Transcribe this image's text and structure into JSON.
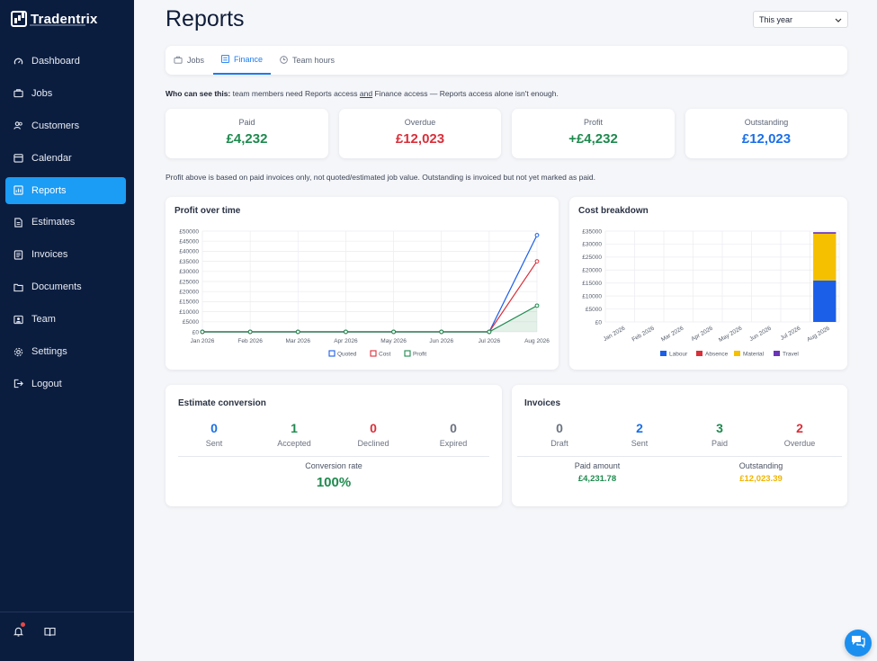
{
  "app": {
    "name": "Tradentrix"
  },
  "sidebar": {
    "items": [
      {
        "label": "Dashboard",
        "icon": "gauge-icon"
      },
      {
        "label": "Jobs",
        "icon": "briefcase-icon"
      },
      {
        "label": "Customers",
        "icon": "users-icon"
      },
      {
        "label": "Calendar",
        "icon": "calendar-icon"
      },
      {
        "label": "Reports",
        "icon": "report-icon",
        "active": true
      },
      {
        "label": "Estimates",
        "icon": "document-icon"
      },
      {
        "label": "Invoices",
        "icon": "invoice-icon"
      },
      {
        "label": "Documents",
        "icon": "folder-icon"
      },
      {
        "label": "Team",
        "icon": "team-icon"
      },
      {
        "label": "Settings",
        "icon": "gear-icon"
      },
      {
        "label": "Logout",
        "icon": "logout-icon"
      }
    ]
  },
  "header": {
    "title": "Reports",
    "period": "This year"
  },
  "tabs": [
    {
      "label": "Jobs",
      "icon": "briefcase-icon"
    },
    {
      "label": "Finance",
      "icon": "list-icon",
      "active": true
    },
    {
      "label": "Team hours",
      "icon": "clock-icon"
    }
  ],
  "notice": {
    "lead": "Who can see this:",
    "part1": "team members need Reports access",
    "and": "and",
    "part2": "Finance access — Reports access alone isn't enough."
  },
  "kpis": [
    {
      "label": "Paid",
      "value": "£4,232",
      "color": "#1e8a4e"
    },
    {
      "label": "Overdue",
      "value": "£12,023",
      "color": "#d92f3a"
    },
    {
      "label": "Profit",
      "value": "+£4,232",
      "color": "#1e8a4e"
    },
    {
      "label": "Outstanding",
      "value": "£12,023",
      "color": "#1b6fe8"
    }
  ],
  "note": "Profit above is based on paid invoices only, not quoted/estimated job value. Outstanding is invoiced but not yet marked as paid.",
  "chart_data": [
    {
      "type": "line",
      "title": "Profit over time",
      "categories": [
        "Jan 2026",
        "Feb 2026",
        "Mar 2026",
        "Apr 2026",
        "May 2026",
        "Jun 2026",
        "Jul 2026",
        "Aug 2026"
      ],
      "y_ticks": [
        "£0",
        "£5000",
        "£10000",
        "£15000",
        "£20000",
        "£25000",
        "£30000",
        "£35000",
        "£40000",
        "£45000",
        "£50000"
      ],
      "ylim": [
        0,
        50000
      ],
      "grid": true,
      "legend": "bottom",
      "series": [
        {
          "name": "Quoted",
          "color": "#1b5ee8",
          "values": [
            0,
            0,
            0,
            0,
            0,
            0,
            0,
            48000
          ]
        },
        {
          "name": "Cost",
          "color": "#d92f3a",
          "values": [
            0,
            0,
            0,
            0,
            0,
            0,
            0,
            35000
          ]
        },
        {
          "name": "Profit",
          "color": "#1e8a4e",
          "values": [
            0,
            0,
            0,
            0,
            0,
            0,
            0,
            13000
          ],
          "fill": true
        }
      ]
    },
    {
      "type": "bar",
      "stacked": true,
      "title": "Cost breakdown",
      "categories": [
        "Jan 2026",
        "Feb 2026",
        "Mar 2026",
        "Apr 2026",
        "May 2026",
        "Jun 2026",
        "Jul 2026",
        "Aug 2026"
      ],
      "y_ticks": [
        "£0",
        "£5000",
        "£10000",
        "£15000",
        "£20000",
        "£25000",
        "£30000",
        "£35000"
      ],
      "ylim": [
        0,
        35000
      ],
      "grid": true,
      "legend": "bottom",
      "series": [
        {
          "name": "Labour",
          "color": "#1b5ee8",
          "values": [
            0,
            0,
            0,
            0,
            0,
            0,
            0,
            16000
          ]
        },
        {
          "name": "Absence",
          "color": "#d92f3a",
          "values": [
            0,
            0,
            0,
            0,
            0,
            0,
            0,
            0
          ]
        },
        {
          "name": "Material",
          "color": "#f5c000",
          "values": [
            0,
            0,
            0,
            0,
            0,
            0,
            0,
            18000
          ]
        },
        {
          "name": "Travel",
          "color": "#6a35b8",
          "values": [
            0,
            0,
            0,
            0,
            0,
            0,
            0,
            600
          ]
        }
      ]
    }
  ],
  "estimates": {
    "title": "Estimate conversion",
    "stats": [
      {
        "value": "0",
        "label": "Sent",
        "color": "#1b6fe8"
      },
      {
        "value": "1",
        "label": "Accepted",
        "color": "#1e8a4e"
      },
      {
        "value": "0",
        "label": "Declined",
        "color": "#d92f3a"
      },
      {
        "value": "0",
        "label": "Expired",
        "color": "#6b7280"
      }
    ],
    "rate_label": "Conversion rate",
    "rate_value": "100%"
  },
  "invoices": {
    "title": "Invoices",
    "stats": [
      {
        "value": "0",
        "label": "Draft",
        "color": "#6b7280"
      },
      {
        "value": "2",
        "label": "Sent",
        "color": "#1b6fe8"
      },
      {
        "value": "3",
        "label": "Paid",
        "color": "#1e8a4e"
      },
      {
        "value": "2",
        "label": "Overdue",
        "color": "#d92f3a"
      }
    ],
    "paid_label": "Paid amount",
    "paid_value": "£4,231.78",
    "outstanding_label": "Outstanding",
    "outstanding_value": "£12,023.39"
  }
}
